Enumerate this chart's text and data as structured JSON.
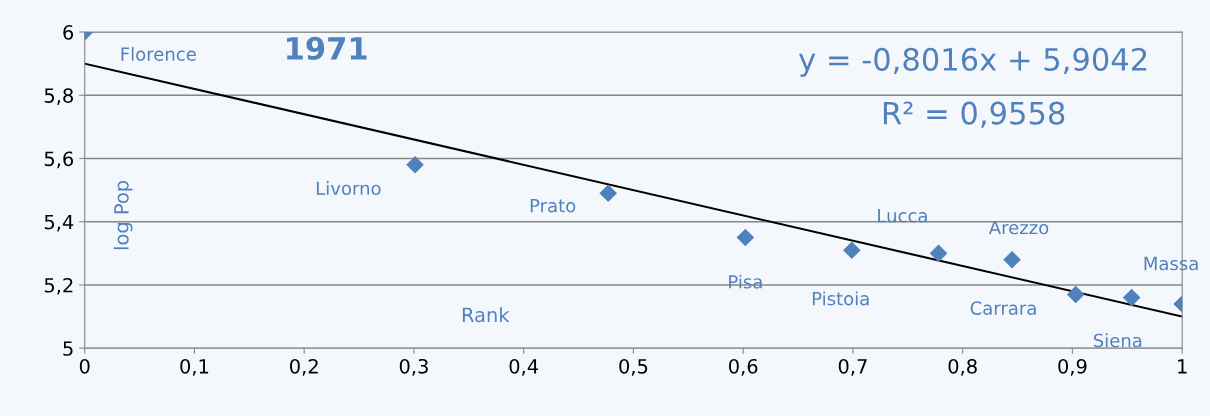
{
  "chart_data": {
    "type": "scatter",
    "title": "1971",
    "xlabel": "Rank",
    "ylabel": "log Pop",
    "xlim": [
      0,
      1
    ],
    "ylim": [
      5,
      6
    ],
    "xticks": [
      0,
      {
        "value": 0.1,
        "label": "0,1"
      },
      {
        "value": 0.2,
        "label": "0,2"
      },
      {
        "value": 0.3,
        "label": "0,3"
      },
      {
        "value": 0.4,
        "label": "0,4"
      },
      {
        "value": 0.5,
        "label": "0,5"
      },
      {
        "value": 0.6,
        "label": "0,6"
      },
      {
        "value": 0.7,
        "label": "0,7"
      },
      {
        "value": 0.8,
        "label": "0,8"
      },
      {
        "value": 0.9,
        "label": "0,9"
      },
      1
    ],
    "yticks": [
      5,
      {
        "value": 5.2,
        "label": "5,2"
      },
      {
        "value": 5.4,
        "label": "5,4"
      },
      {
        "value": 5.6,
        "label": "5,6"
      },
      {
        "value": 5.8,
        "label": "5,8"
      },
      6
    ],
    "grid": "y",
    "legend": false,
    "series": [
      {
        "marker": "diamond",
        "color": "#4f81bd",
        "x": [
          0,
          0.301,
          0.477,
          0.602,
          0.699,
          0.778,
          0.845,
          0.903,
          0.954,
          1.0
        ],
        "values": [
          6.0,
          5.58,
          5.49,
          5.35,
          5.31,
          5.3,
          5.28,
          5.17,
          5.16,
          5.14
        ]
      },
      {
        "type": "line",
        "color": "#000000",
        "x": [
          0,
          1
        ],
        "values": [
          5.9,
          5.1
        ]
      }
    ],
    "annotations": [
      "y = -0,8016x + 5,9042",
      "R² = 0,9558",
      {
        "text": "Florence",
        "x": 0,
        "y": 6.0
      },
      {
        "text": "Livorno",
        "x": 0.301,
        "y": 5.58
      },
      {
        "text": "Prato",
        "x": 0.477,
        "y": 5.49
      },
      {
        "text": "Pisa",
        "x": 0.602,
        "y": 5.35
      },
      {
        "text": "Pistoia",
        "x": 0.699,
        "y": 5.31
      },
      {
        "text": "Lucca",
        "x": 0.778,
        "y": 5.3
      },
      {
        "text": "Arezzo",
        "x": 0.845,
        "y": 5.28
      },
      {
        "text": "Carrara",
        "x": 0.903,
        "y": 5.17
      },
      {
        "text": "Siena",
        "x": 0.954,
        "y": 5.16
      },
      {
        "text": "Massa",
        "x": 1.0,
        "y": 5.14
      }
    ]
  }
}
